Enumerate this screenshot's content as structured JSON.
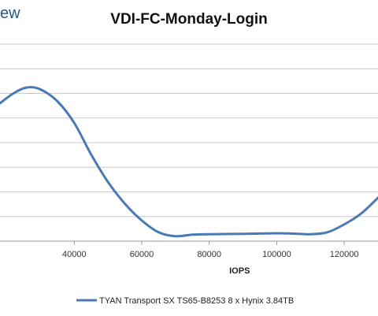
{
  "logo_fragment": "ew",
  "chart_data": {
    "type": "line",
    "title": "VDI-FC-Monday-Login",
    "xlabel": "IOPS",
    "ylabel": "",
    "xlim": [
      18000,
      130000
    ],
    "ylim": [
      0,
      10
    ],
    "x_ticks": [
      40000,
      60000,
      80000,
      100000,
      120000
    ],
    "grid": true,
    "legend_position": "bottom",
    "series": [
      {
        "name": "TYAN Transport SX TS65-B8253 8 x Hynix 3.84TB",
        "color": "#4a7ab5",
        "x": [
          18000,
          22000,
          26000,
          30000,
          35000,
          40000,
          45000,
          50000,
          55000,
          60000,
          65000,
          70000,
          75000,
          80000,
          90000,
          100000,
          105000,
          110000,
          115000,
          120000,
          125000,
          130000
        ],
        "y": [
          7.0,
          7.5,
          7.8,
          7.7,
          7.1,
          6.0,
          4.4,
          3.0,
          1.9,
          1.05,
          0.45,
          0.25,
          0.33,
          0.35,
          0.37,
          0.4,
          0.38,
          0.35,
          0.45,
          0.85,
          1.4,
          2.2
        ]
      }
    ]
  }
}
